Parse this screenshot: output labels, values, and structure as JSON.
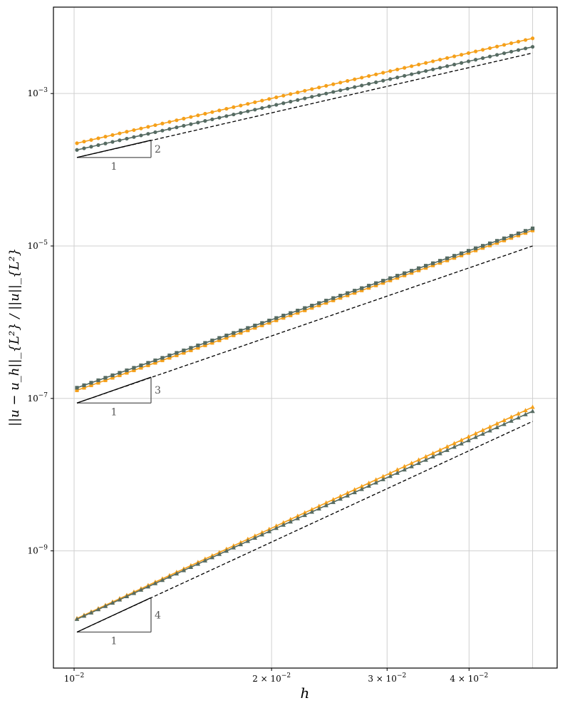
{
  "chart_data": {
    "type": "line",
    "title": "",
    "xlabel": "h",
    "ylabel": "||u − u_h||_{L²} / ||u||_{L²}",
    "x_scale": "log",
    "y_scale": "log",
    "xlim": [
      0.0093,
      0.0545
    ],
    "ylim": [
      2.9e-11,
      0.0136
    ],
    "grid": true,
    "x_ticks": [
      {
        "value": 0.01,
        "base": "10",
        "exp": "−2",
        "coef": ""
      },
      {
        "value": 0.02,
        "base": "10",
        "exp": "−2",
        "coef": "2 × "
      },
      {
        "value": 0.03,
        "base": "10",
        "exp": "−2",
        "coef": "3 × "
      },
      {
        "value": 0.04,
        "base": "10",
        "exp": "−2",
        "coef": "4 × "
      }
    ],
    "y_ticks": [
      {
        "value": 0.001,
        "base": "10",
        "exp": "−3"
      },
      {
        "value": 1e-05,
        "base": "10",
        "exp": "−5"
      },
      {
        "value": 1e-07,
        "base": "10",
        "exp": "−7"
      },
      {
        "value": 1e-09,
        "base": "10",
        "exp": "−9"
      }
    ],
    "h_range": [
      0.0101,
      0.05
    ],
    "n_points": 65,
    "series": [
      {
        "name": "order 2 (orange)",
        "color": "#f5a01a",
        "marker": "circle",
        "order": 2,
        "start": 0.000223,
        "end": 0.0053
      },
      {
        "name": "order 2 (gray)",
        "color": "#566b62",
        "marker": "circle",
        "order": 2,
        "start": 0.000182,
        "end": 0.0041
      },
      {
        "name": "order 3 (orange)",
        "color": "#f5a01a",
        "marker": "square",
        "order": 3,
        "start": 1.28e-07,
        "end": 1.6e-05
      },
      {
        "name": "order 3 (gray)",
        "color": "#566b62",
        "marker": "square",
        "order": 3,
        "start": 1.38e-07,
        "end": 1.7e-05
      },
      {
        "name": "order 4 (orange)",
        "color": "#f5a01a",
        "marker": "triangle",
        "order": 4,
        "start": 1.3e-10,
        "end": 7.7e-08
      },
      {
        "name": "order 4 (gray)",
        "color": "#566b62",
        "marker": "triangle",
        "order": 4,
        "start": 1.27e-10,
        "end": 6.8e-08
      }
    ],
    "reference_lines": [
      {
        "order": 2,
        "start": 0.000145,
        "end": 0.0034,
        "style": "dashed"
      },
      {
        "order": 3,
        "start": 8.7e-08,
        "end": 1e-05,
        "style": "dashed"
      },
      {
        "order": 4,
        "start": 8.6e-11,
        "end": 5e-08,
        "style": "dashed"
      }
    ],
    "slope_triangles": [
      {
        "x0": 0.0101,
        "x1": 0.0131,
        "y0": 0.000145,
        "run_label": "1",
        "rise_label": "2",
        "order": 2
      },
      {
        "x0": 0.0101,
        "x1": 0.0131,
        "y0": 8.7e-08,
        "run_label": "1",
        "rise_label": "3",
        "order": 3
      },
      {
        "x0": 0.0101,
        "x1": 0.0131,
        "y0": 8.6e-11,
        "run_label": "1",
        "rise_label": "4",
        "order": 4
      }
    ]
  }
}
